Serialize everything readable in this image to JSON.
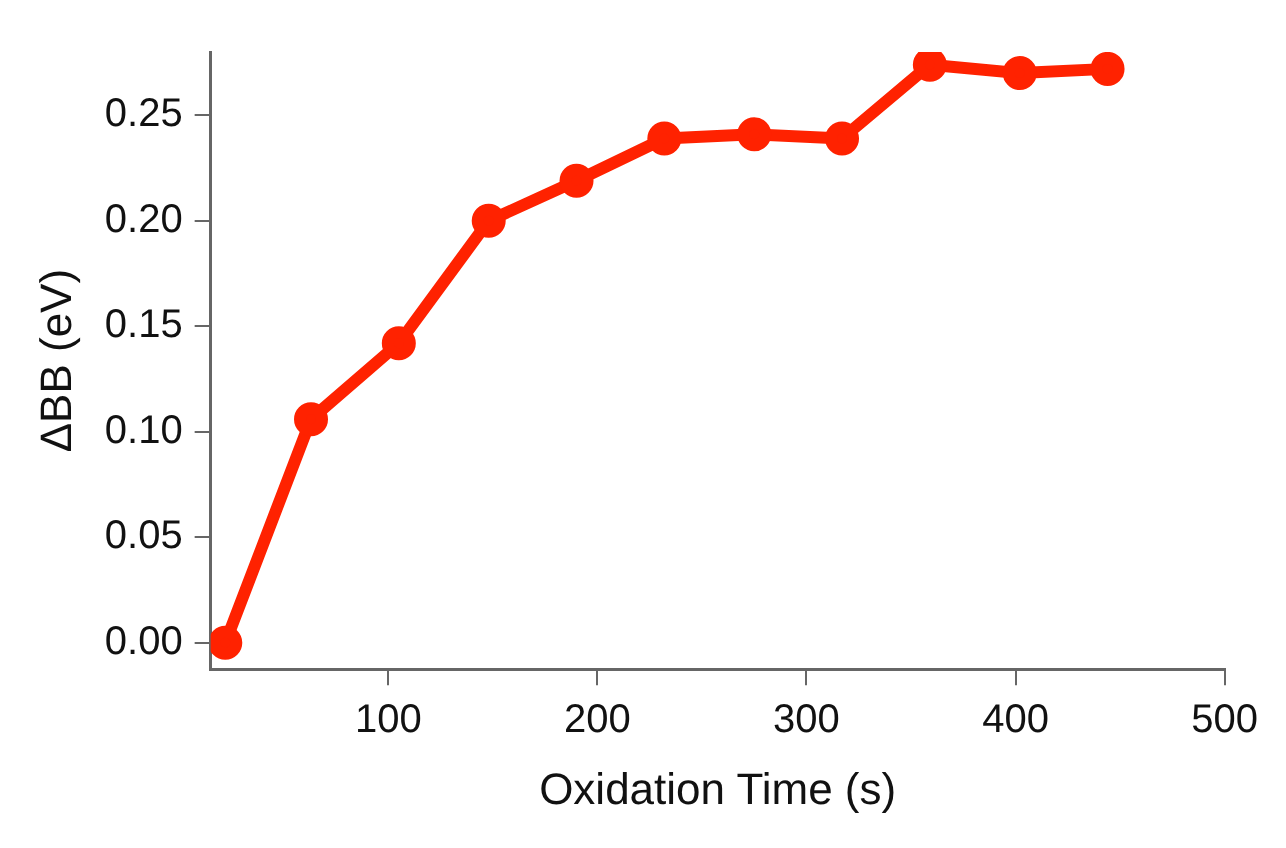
{
  "chart_data": {
    "type": "line",
    "xlabel": "Oxidation Time (s)",
    "ylabel": "ΔBB (eV)",
    "x": [
      22,
      63,
      105,
      148,
      190,
      232,
      275,
      317,
      359,
      402,
      444
    ],
    "series": [
      {
        "color": "#ff2200",
        "values": [
          0,
          0.106,
          0.142,
          0.2,
          0.219,
          0.239,
          0.241,
          0.239,
          0.274,
          0.27,
          0.272
        ]
      }
    ],
    "xlim": [
      15,
      500
    ],
    "xticks": [
      100,
      200,
      300,
      400,
      500
    ],
    "ylim": [
      -0.0125,
      0.28
    ],
    "yticks": [
      {
        "value": 0,
        "label": "0.00"
      },
      {
        "value": 0.05,
        "label": "0.05"
      },
      {
        "value": 0.1,
        "label": "0.10"
      },
      {
        "value": 0.15,
        "label": "0.15"
      },
      {
        "value": 0.2,
        "label": "0.20"
      },
      {
        "value": 0.25,
        "label": "0.25"
      }
    ],
    "marker": "circle",
    "line_style": "solid",
    "grid": false,
    "legend": false
  }
}
